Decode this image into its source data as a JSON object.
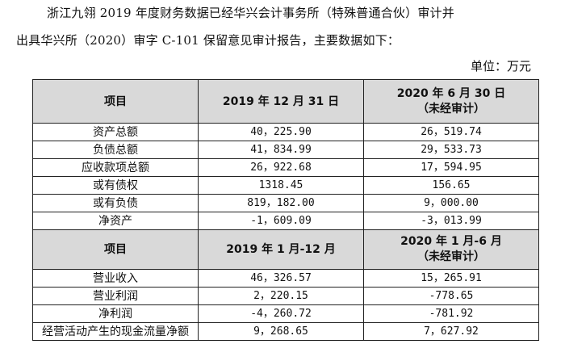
{
  "intro": {
    "line1": "浙江九翎 2019 年度财务数据已经华兴会计事务所（特殊普通合伙）审计并",
    "line2": "出具华兴所（2020）审字 C-101 保留意见审计报告，主要数据如下："
  },
  "unit": "单位：万元",
  "table1": {
    "headers": {
      "item": "项目",
      "col1": "2019 年 12 月 31 日",
      "col2_line1": "2020 年 6 月 30 日",
      "col2_line2": "（未经审计）"
    },
    "rows": [
      {
        "label": "资产总额",
        "v1": "40，225.90",
        "v2": "26，519.74"
      },
      {
        "label": "负债总额",
        "v1": "41，834.99",
        "v2": "29，533.73"
      },
      {
        "label": "应收款项总额",
        "v1": "26，922.68",
        "v2": "17，594.95"
      },
      {
        "label": "或有债权",
        "v1": "1318.45",
        "v2": "156.65"
      },
      {
        "label": "或有负债",
        "v1": "819，182.00",
        "v2": "9，000.00"
      },
      {
        "label": "净资产",
        "v1": "-1，609.09",
        "v2": "-3，013.99"
      }
    ]
  },
  "table2": {
    "headers": {
      "item": "项目",
      "col1": "2019 年 1 月-12 月",
      "col2_line1": "2020 年 1 月-6 月",
      "col2_line2": "（未经审计）"
    },
    "rows": [
      {
        "label": "营业收入",
        "v1": "46，326.57",
        "v2": "15，265.91"
      },
      {
        "label": "营业利润",
        "v1": "2，220.15",
        "v2": "-778.65"
      },
      {
        "label": "净利润",
        "v1": "-4，260.72",
        "v2": "-781.92"
      },
      {
        "label": "经营活动产生的现金流量净额",
        "v1": "9，268.65",
        "v2": "7，627.92"
      }
    ]
  }
}
